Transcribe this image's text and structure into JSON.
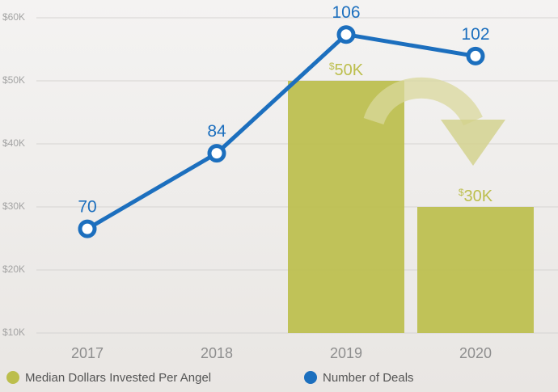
{
  "chart_data": {
    "type": "bar-line",
    "categories": [
      "2017",
      "2018",
      "2019",
      "2020"
    ],
    "series": [
      {
        "name": "Median Dollars Invested Per Angel",
        "type": "bar",
        "color": "#bcbe4c",
        "values": [
          null,
          null,
          50000,
          30000
        ],
        "value_labels": [
          null,
          null,
          "$50K",
          "$30K"
        ]
      },
      {
        "name": "Number of Deals",
        "type": "line",
        "axis": "y2",
        "color": "#1c6fbe",
        "values": [
          70,
          84,
          106,
          102
        ]
      }
    ],
    "ylim": [
      10000,
      60000
    ],
    "yticks": [
      {
        "value": 10000,
        "label": "$10K"
      },
      {
        "value": 20000,
        "label": "$20K"
      },
      {
        "value": 30000,
        "label": "$30K"
      },
      {
        "value": 40000,
        "label": "$40K"
      },
      {
        "value": 50000,
        "label": "$50K"
      },
      {
        "value": 60000,
        "label": "$60K"
      }
    ],
    "y2lim": [
      50.7,
      109.1
    ],
    "grid": true,
    "legend": "bottom-left"
  }
}
